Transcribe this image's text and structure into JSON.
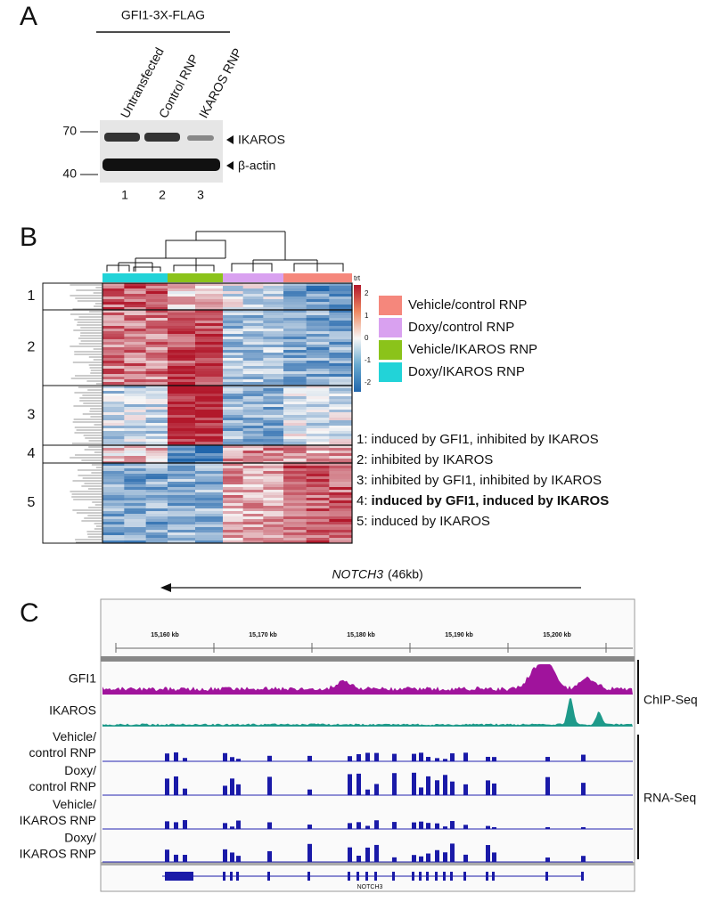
{
  "panel_a": {
    "label": "A",
    "construct": "GFI1-3X-FLAG",
    "lanes": [
      "Untransfected",
      "Control RNP",
      "IKAROS RNP"
    ],
    "lane_numbers": [
      "1",
      "2",
      "3"
    ],
    "markers": [
      "70",
      "40"
    ],
    "bands": [
      "IKAROS",
      "β-actin"
    ]
  },
  "panel_b": {
    "label": "B",
    "scale_title": "trt",
    "scale_ticks": [
      "2",
      "1",
      "0",
      "-1",
      "-2"
    ],
    "clusters": [
      "1",
      "2",
      "3",
      "4",
      "5"
    ],
    "legend": [
      "Vehicle/control RNP",
      "Doxy/control RNP",
      "Vehicle/IKAROS RNP",
      "Doxy/IKAROS RNP"
    ],
    "cluster_notes": [
      {
        "number": "1:",
        "text": "induced by GFI1, inhibited by IKAROS"
      },
      {
        "number": "2:",
        "text": "inhibited by IKAROS"
      },
      {
        "number": "3:",
        "text": "inhibited by GFI1, inhibited by IKAROS"
      },
      {
        "number": "4:",
        "text": "induced by GFI1, induced by IKAROS"
      },
      {
        "number": "5:",
        "text": "induced by IKAROS"
      }
    ]
  },
  "panel_c": {
    "label": "C",
    "gene": "NOTCH3",
    "gene_size": "(46kb)",
    "coords": [
      "15,160 kb",
      "15,170 kb",
      "15,180 kb",
      "15,190 kb",
      "15,200 kb"
    ],
    "tracks": [
      [
        "GFI1"
      ],
      [
        "IKAROS"
      ],
      [
        "Vehicle/",
        "control RNP"
      ],
      [
        "Doxy/",
        "control RNP"
      ],
      [
        "Vehicle/",
        "IKAROS RNP"
      ],
      [
        "Doxy/",
        "IKAROS RNP"
      ]
    ],
    "groups": [
      "ChIP-Seq",
      "RNA-Seq"
    ],
    "gene_label": "NOTCH3"
  }
}
